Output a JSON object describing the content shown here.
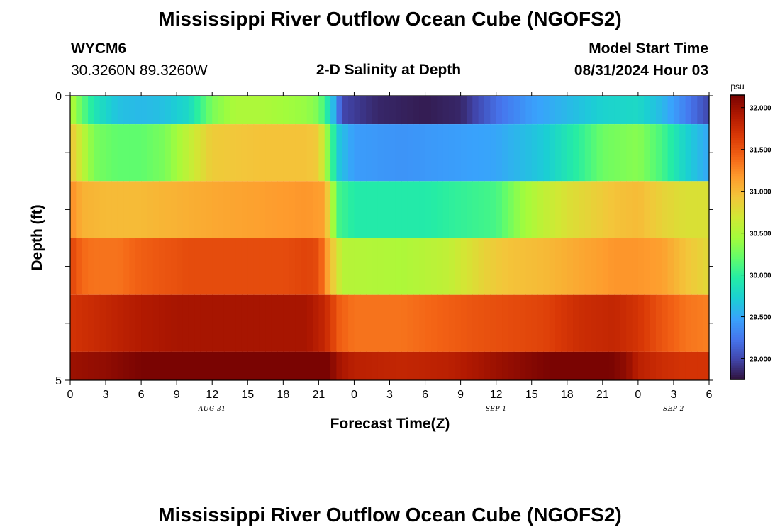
{
  "header": {
    "title": "Mississippi River Outflow Ocean Cube (NGOFS2)",
    "station": "WYCM6",
    "coords": "30.3260N  89.3260W",
    "subtitle": "2-D Salinity at Depth",
    "model_start_label": "Model Start Time",
    "model_start_value": "08/31/2024 Hour 03"
  },
  "footer": {
    "title": "Mississippi River Outflow Ocean Cube (NGOFS2)"
  },
  "colors": {
    "colormap": [
      "#30123b",
      "#4145ab",
      "#4675ed",
      "#39a2fc",
      "#1bcfd4",
      "#24eca6",
      "#61fc6c",
      "#a4fc3b",
      "#d1e834",
      "#f3c63a",
      "#fe9b2d",
      "#f36315",
      "#d93806",
      "#b11901",
      "#7a0402"
    ]
  },
  "chart_data": {
    "type": "heatmap",
    "title": "2-D Salinity at Depth",
    "xlabel": "Forecast Time(Z)",
    "ylabel": "Depth (ft)",
    "x_hours": [
      0,
      3,
      6,
      9,
      12,
      15,
      18,
      21,
      24,
      27,
      30,
      33,
      36,
      39,
      42,
      45,
      48,
      51,
      54
    ],
    "x_tick_labels": [
      "0",
      "3",
      "6",
      "9",
      "12",
      "15",
      "18",
      "21",
      "0",
      "3",
      "6",
      "9",
      "12",
      "15",
      "18",
      "21",
      "0",
      "3",
      "6"
    ],
    "xlim": [
      0,
      54
    ],
    "date_labels": [
      {
        "label": "AUG 31",
        "hour": 12
      },
      {
        "label": "SEP 1",
        "hour": 36
      },
      {
        "label": "SEP 2",
        "hour": 51
      }
    ],
    "y_ticks": [
      0,
      1,
      2,
      3,
      4,
      5
    ],
    "y_tick_labels": [
      "0",
      "",
      "",
      "",
      "",
      "5"
    ],
    "ylim": [
      0,
      5
    ],
    "layers": [
      {
        "top": 0.0,
        "bottom": 0.5,
        "keys": [
          [
            0,
            30.55
          ],
          [
            1,
            30.2
          ],
          [
            2,
            29.9
          ],
          [
            4,
            29.65
          ],
          [
            6,
            29.6
          ],
          [
            8,
            29.65
          ],
          [
            10,
            29.8
          ],
          [
            12,
            30.3
          ],
          [
            14,
            30.5
          ],
          [
            16,
            30.5
          ],
          [
            18,
            30.45
          ],
          [
            20,
            30.4
          ],
          [
            21,
            30.3
          ],
          [
            22,
            29.8
          ],
          [
            23,
            29.0
          ],
          [
            26,
            28.85
          ],
          [
            30,
            28.8
          ],
          [
            33,
            28.85
          ],
          [
            36,
            29.2
          ],
          [
            39,
            29.45
          ],
          [
            42,
            29.6
          ],
          [
            45,
            29.75
          ],
          [
            48,
            29.8
          ],
          [
            50,
            29.6
          ],
          [
            52,
            29.3
          ],
          [
            54,
            29.0
          ]
        ]
      },
      {
        "top": 0.5,
        "bottom": 1.5,
        "keys": [
          [
            0,
            30.95
          ],
          [
            1,
            30.6
          ],
          [
            2,
            30.3
          ],
          [
            4,
            30.2
          ],
          [
            6,
            30.2
          ],
          [
            8,
            30.3
          ],
          [
            10,
            30.6
          ],
          [
            12,
            30.9
          ],
          [
            16,
            30.95
          ],
          [
            20,
            30.95
          ],
          [
            21,
            30.9
          ],
          [
            22,
            30.2
          ],
          [
            22.6,
            29.7
          ],
          [
            24,
            29.45
          ],
          [
            28,
            29.4
          ],
          [
            32,
            29.45
          ],
          [
            36,
            29.5
          ],
          [
            40,
            29.7
          ],
          [
            43,
            30.0
          ],
          [
            45,
            30.25
          ],
          [
            48,
            30.35
          ],
          [
            50,
            30.1
          ],
          [
            52,
            29.75
          ],
          [
            54,
            29.5
          ]
        ]
      },
      {
        "top": 1.5,
        "bottom": 2.5,
        "keys": [
          [
            0,
            31.25
          ],
          [
            1,
            31.05
          ],
          [
            3,
            31.0
          ],
          [
            6,
            31.0
          ],
          [
            9,
            31.05
          ],
          [
            12,
            31.1
          ],
          [
            16,
            31.15
          ],
          [
            20,
            31.2
          ],
          [
            21.5,
            31.15
          ],
          [
            22.6,
            30.1
          ],
          [
            24,
            29.95
          ],
          [
            30,
            29.95
          ],
          [
            36,
            30.1
          ],
          [
            38,
            30.4
          ],
          [
            40,
            30.6
          ],
          [
            42,
            30.75
          ],
          [
            44,
            30.85
          ],
          [
            46,
            30.95
          ],
          [
            48,
            31.0
          ],
          [
            50,
            30.85
          ],
          [
            52,
            30.75
          ],
          [
            54,
            30.75
          ]
        ]
      },
      {
        "top": 2.5,
        "bottom": 3.5,
        "keys": [
          [
            0,
            31.6
          ],
          [
            1,
            31.4
          ],
          [
            2,
            31.35
          ],
          [
            4,
            31.35
          ],
          [
            6,
            31.45
          ],
          [
            8,
            31.5
          ],
          [
            10,
            31.55
          ],
          [
            14,
            31.55
          ],
          [
            18,
            31.55
          ],
          [
            20,
            31.6
          ],
          [
            21,
            31.55
          ],
          [
            22,
            31.0
          ],
          [
            23,
            30.55
          ],
          [
            28,
            30.5
          ],
          [
            32,
            30.6
          ],
          [
            35,
            30.85
          ],
          [
            37,
            30.95
          ],
          [
            40,
            31.0
          ],
          [
            43,
            31.1
          ],
          [
            46,
            31.2
          ],
          [
            48,
            31.2
          ],
          [
            50,
            31.15
          ],
          [
            52,
            30.95
          ],
          [
            54,
            30.8
          ]
        ]
      },
      {
        "top": 3.5,
        "bottom": 4.5,
        "keys": [
          [
            0,
            31.7
          ],
          [
            3,
            31.8
          ],
          [
            6,
            31.9
          ],
          [
            9,
            31.95
          ],
          [
            12,
            31.95
          ],
          [
            15,
            31.95
          ],
          [
            18,
            31.95
          ],
          [
            20,
            31.95
          ],
          [
            21.5,
            31.8
          ],
          [
            22.8,
            31.45
          ],
          [
            24,
            31.35
          ],
          [
            28,
            31.35
          ],
          [
            32,
            31.45
          ],
          [
            34,
            31.5
          ],
          [
            37,
            31.55
          ],
          [
            40,
            31.6
          ],
          [
            43,
            31.75
          ],
          [
            46,
            31.8
          ],
          [
            48,
            31.7
          ],
          [
            50,
            31.5
          ],
          [
            52,
            31.35
          ],
          [
            54,
            31.3
          ]
        ]
      },
      {
        "top": 4.5,
        "bottom": 5.0,
        "keys": [
          [
            0,
            32.0
          ],
          [
            3,
            32.05
          ],
          [
            6,
            32.15
          ],
          [
            9,
            32.3
          ],
          [
            12,
            32.35
          ],
          [
            15,
            32.3
          ],
          [
            18,
            32.35
          ],
          [
            20,
            32.35
          ],
          [
            21.5,
            32.2
          ],
          [
            22.8,
            31.95
          ],
          [
            24,
            31.85
          ],
          [
            28,
            31.8
          ],
          [
            32,
            31.85
          ],
          [
            36,
            32.0
          ],
          [
            39,
            32.1
          ],
          [
            42,
            32.2
          ],
          [
            45,
            32.2
          ],
          [
            47,
            32.05
          ],
          [
            48,
            31.85
          ],
          [
            50,
            31.75
          ],
          [
            52,
            31.7
          ],
          [
            54,
            31.7
          ]
        ]
      }
    ],
    "colorbar": {
      "unit": "psu",
      "min": 28.75,
      "max": 32.15,
      "ticks": [
        29.0,
        29.5,
        30.0,
        30.5,
        31.0,
        31.5,
        32.0
      ],
      "tick_labels": [
        "29.000",
        "29.500",
        "30.000",
        "30.500",
        "31.000",
        "31.500",
        "32.000"
      ]
    }
  }
}
